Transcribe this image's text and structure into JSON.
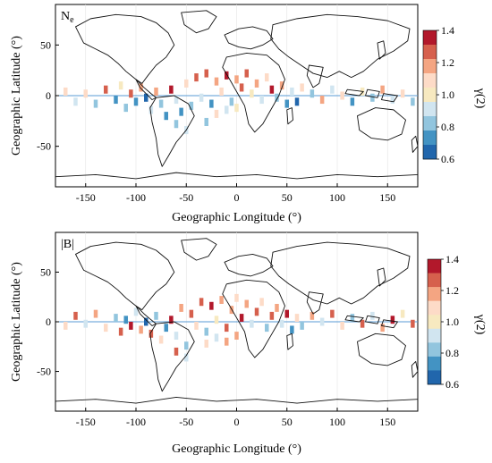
{
  "chart_data": [
    {
      "type": "heatmap",
      "panel_label": "Ne",
      "panel_label_base": "N",
      "panel_label_sub": "e",
      "xlabel": "Geographic Longitude (°)",
      "ylabel": "Geographic Latitude (°)",
      "xlim": [
        -180,
        180
      ],
      "ylim": [
        -90,
        90
      ],
      "xticks": [
        -150,
        -100,
        -50,
        0,
        50,
        100,
        150
      ],
      "yticks": [
        50,
        0,
        -50
      ],
      "colorbar": {
        "label": "γ(2)",
        "min": 0.6,
        "max": 1.4,
        "ticks": [
          "1.4",
          "1.2",
          "1.0",
          "0.8",
          "0.6"
        ],
        "colors": [
          "#b2182b",
          "#d6604d",
          "#f4a582",
          "#fddbc7",
          "#f7e9c0",
          "#d1e5f0",
          "#92c5de",
          "#4393c3",
          "#2166ac"
        ]
      },
      "cells": [
        {
          "lon": -170,
          "lat": 4,
          "v": 1.05
        },
        {
          "lon": -160,
          "lat": -6,
          "v": 0.9
        },
        {
          "lon": -150,
          "lat": 2,
          "v": 1.1
        },
        {
          "lon": -140,
          "lat": -8,
          "v": 0.85
        },
        {
          "lon": -130,
          "lat": 6,
          "v": 1.25
        },
        {
          "lon": -120,
          "lat": -4,
          "v": 0.75
        },
        {
          "lon": -115,
          "lat": 10,
          "v": 1.0
        },
        {
          "lon": -110,
          "lat": -12,
          "v": 0.8
        },
        {
          "lon": -105,
          "lat": 2,
          "v": 1.3
        },
        {
          "lon": -100,
          "lat": -6,
          "v": 0.7
        },
        {
          "lon": -95,
          "lat": 8,
          "v": 1.15
        },
        {
          "lon": -90,
          "lat": -2,
          "v": 0.65
        },
        {
          "lon": -85,
          "lat": -14,
          "v": 0.95
        },
        {
          "lon": -80,
          "lat": 4,
          "v": 1.2
        },
        {
          "lon": -75,
          "lat": -8,
          "v": 0.85
        },
        {
          "lon": -70,
          "lat": -20,
          "v": 0.75
        },
        {
          "lon": -65,
          "lat": 6,
          "v": 1.35
        },
        {
          "lon": -60,
          "lat": -4,
          "v": 0.9
        },
        {
          "lon": -55,
          "lat": -16,
          "v": 0.7
        },
        {
          "lon": -50,
          "lat": 12,
          "v": 1.1
        },
        {
          "lon": -45,
          "lat": -10,
          "v": 0.8
        },
        {
          "lon": -40,
          "lat": 18,
          "v": 1.25
        },
        {
          "lon": -35,
          "lat": -2,
          "v": 0.95
        },
        {
          "lon": -30,
          "lat": 22,
          "v": 1.3
        },
        {
          "lon": -25,
          "lat": -8,
          "v": 0.75
        },
        {
          "lon": -20,
          "lat": 14,
          "v": 1.2
        },
        {
          "lon": -15,
          "lat": 4,
          "v": 1.05
        },
        {
          "lon": -10,
          "lat": 20,
          "v": 1.35
        },
        {
          "lon": -5,
          "lat": -6,
          "v": 0.85
        },
        {
          "lon": 0,
          "lat": 16,
          "v": 1.15
        },
        {
          "lon": 5,
          "lat": 8,
          "v": 1.25
        },
        {
          "lon": 10,
          "lat": 22,
          "v": 1.3
        },
        {
          "lon": 15,
          "lat": 2,
          "v": 1.0
        },
        {
          "lon": 20,
          "lat": 12,
          "v": 1.2
        },
        {
          "lon": 25,
          "lat": -4,
          "v": 0.9
        },
        {
          "lon": 30,
          "lat": 18,
          "v": 1.1
        },
        {
          "lon": 35,
          "lat": 6,
          "v": 1.35
        },
        {
          "lon": 40,
          "lat": -2,
          "v": 0.8
        },
        {
          "lon": 45,
          "lat": 10,
          "v": 1.15
        },
        {
          "lon": 50,
          "lat": -8,
          "v": 0.7
        },
        {
          "lon": 55,
          "lat": 4,
          "v": 0.95
        },
        {
          "lon": 60,
          "lat": -6,
          "v": 0.65
        },
        {
          "lon": 65,
          "lat": 8,
          "v": 1.05
        },
        {
          "lon": 75,
          "lat": 2,
          "v": 0.85
        },
        {
          "lon": 85,
          "lat": -4,
          "v": 1.2
        },
        {
          "lon": 95,
          "lat": 6,
          "v": 0.9
        },
        {
          "lon": 105,
          "lat": 0,
          "v": 1.1
        },
        {
          "lon": 115,
          "lat": -6,
          "v": 0.75
        },
        {
          "lon": 125,
          "lat": 4,
          "v": 1.0
        },
        {
          "lon": 135,
          "lat": -2,
          "v": 0.85
        },
        {
          "lon": 145,
          "lat": 6,
          "v": 1.15
        },
        {
          "lon": 155,
          "lat": -4,
          "v": 0.95
        },
        {
          "lon": 165,
          "lat": 2,
          "v": 1.05
        },
        {
          "lon": 175,
          "lat": -6,
          "v": 0.8
        },
        {
          "lon": -30,
          "lat": -26,
          "v": 0.85
        },
        {
          "lon": -20,
          "lat": -18,
          "v": 1.1
        },
        {
          "lon": -10,
          "lat": -14,
          "v": 0.95
        },
        {
          "lon": -60,
          "lat": -28,
          "v": 0.8
        },
        {
          "lon": -50,
          "lat": -34,
          "v": 0.9
        },
        {
          "lon": 0,
          "lat": -12,
          "v": 1.0
        }
      ]
    },
    {
      "type": "heatmap",
      "panel_label": "|B|",
      "xlabel": "Geographic Longitude (°)",
      "ylabel": "Geographic Latitude (°)",
      "xlim": [
        -180,
        180
      ],
      "ylim": [
        -90,
        90
      ],
      "xticks": [
        -150,
        -100,
        -50,
        0,
        50,
        100,
        150
      ],
      "yticks": [
        50,
        0,
        -50
      ],
      "colorbar": {
        "label": "γ(2)",
        "min": 0.6,
        "max": 1.4,
        "ticks": [
          "1.4",
          "1.2",
          "1.0",
          "0.8",
          "0.6"
        ],
        "colors": [
          "#b2182b",
          "#d6604d",
          "#f4a582",
          "#fddbc7",
          "#f7e9c0",
          "#d1e5f0",
          "#92c5de",
          "#4393c3",
          "#2166ac"
        ]
      },
      "cells": [
        {
          "lon": -170,
          "lat": -4,
          "v": 1.1
        },
        {
          "lon": -160,
          "lat": 6,
          "v": 1.3
        },
        {
          "lon": -150,
          "lat": -2,
          "v": 0.9
        },
        {
          "lon": -140,
          "lat": 8,
          "v": 1.2
        },
        {
          "lon": -130,
          "lat": -6,
          "v": 1.05
        },
        {
          "lon": -120,
          "lat": 4,
          "v": 0.85
        },
        {
          "lon": -115,
          "lat": -10,
          "v": 1.25
        },
        {
          "lon": -110,
          "lat": 2,
          "v": 0.7
        },
        {
          "lon": -105,
          "lat": -4,
          "v": 1.35
        },
        {
          "lon": -100,
          "lat": 10,
          "v": 0.95
        },
        {
          "lon": -95,
          "lat": -8,
          "v": 1.15
        },
        {
          "lon": -90,
          "lat": 0,
          "v": 0.65
        },
        {
          "lon": -85,
          "lat": -12,
          "v": 1.3
        },
        {
          "lon": -80,
          "lat": 6,
          "v": 0.8
        },
        {
          "lon": -75,
          "lat": -18,
          "v": 1.1
        },
        {
          "lon": -70,
          "lat": -6,
          "v": 0.75
        },
        {
          "lon": -65,
          "lat": 2,
          "v": 1.35
        },
        {
          "lon": -60,
          "lat": -14,
          "v": 0.9
        },
        {
          "lon": -55,
          "lat": 14,
          "v": 1.2
        },
        {
          "lon": -50,
          "lat": -24,
          "v": 0.85
        },
        {
          "lon": -45,
          "lat": 8,
          "v": 1.3
        },
        {
          "lon": -40,
          "lat": -4,
          "v": 1.05
        },
        {
          "lon": -35,
          "lat": 20,
          "v": 1.25
        },
        {
          "lon": -30,
          "lat": -10,
          "v": 0.8
        },
        {
          "lon": -25,
          "lat": 16,
          "v": 1.35
        },
        {
          "lon": -20,
          "lat": 2,
          "v": 1.0
        },
        {
          "lon": -15,
          "lat": 22,
          "v": 1.2
        },
        {
          "lon": -10,
          "lat": -6,
          "v": 1.3
        },
        {
          "lon": -5,
          "lat": 12,
          "v": 1.15
        },
        {
          "lon": 0,
          "lat": 24,
          "v": 1.05
        },
        {
          "lon": 5,
          "lat": 4,
          "v": 1.35
        },
        {
          "lon": 10,
          "lat": 18,
          "v": 1.2
        },
        {
          "lon": 15,
          "lat": -2,
          "v": 0.95
        },
        {
          "lon": 20,
          "lat": 10,
          "v": 1.3
        },
        {
          "lon": 25,
          "lat": 20,
          "v": 1.1
        },
        {
          "lon": 30,
          "lat": -6,
          "v": 0.85
        },
        {
          "lon": 35,
          "lat": 6,
          "v": 1.25
        },
        {
          "lon": 40,
          "lat": 14,
          "v": 1.15
        },
        {
          "lon": 45,
          "lat": -2,
          "v": 0.9
        },
        {
          "lon": 50,
          "lat": 8,
          "v": 1.35
        },
        {
          "lon": 55,
          "lat": -8,
          "v": 0.75
        },
        {
          "lon": 60,
          "lat": 4,
          "v": 1.05
        },
        {
          "lon": 65,
          "lat": -4,
          "v": 0.8
        },
        {
          "lon": 75,
          "lat": 6,
          "v": 1.2
        },
        {
          "lon": 85,
          "lat": 0,
          "v": 0.95
        },
        {
          "lon": 95,
          "lat": 8,
          "v": 1.3
        },
        {
          "lon": 105,
          "lat": -4,
          "v": 1.1
        },
        {
          "lon": 115,
          "lat": 4,
          "v": 0.85
        },
        {
          "lon": 125,
          "lat": -2,
          "v": 1.25
        },
        {
          "lon": 135,
          "lat": 6,
          "v": 0.9
        },
        {
          "lon": 145,
          "lat": -6,
          "v": 1.15
        },
        {
          "lon": 155,
          "lat": 2,
          "v": 1.35
        },
        {
          "lon": 165,
          "lat": 8,
          "v": 1.0
        },
        {
          "lon": 175,
          "lat": -2,
          "v": 1.3
        },
        {
          "lon": -30,
          "lat": -22,
          "v": 1.1
        },
        {
          "lon": -20,
          "lat": -16,
          "v": 0.9
        },
        {
          "lon": -10,
          "lat": -20,
          "v": 1.2
        },
        {
          "lon": -60,
          "lat": -30,
          "v": 1.25
        },
        {
          "lon": -50,
          "lat": -36,
          "v": 0.95
        },
        {
          "lon": 0,
          "lat": -14,
          "v": 1.15
        }
      ]
    }
  ]
}
